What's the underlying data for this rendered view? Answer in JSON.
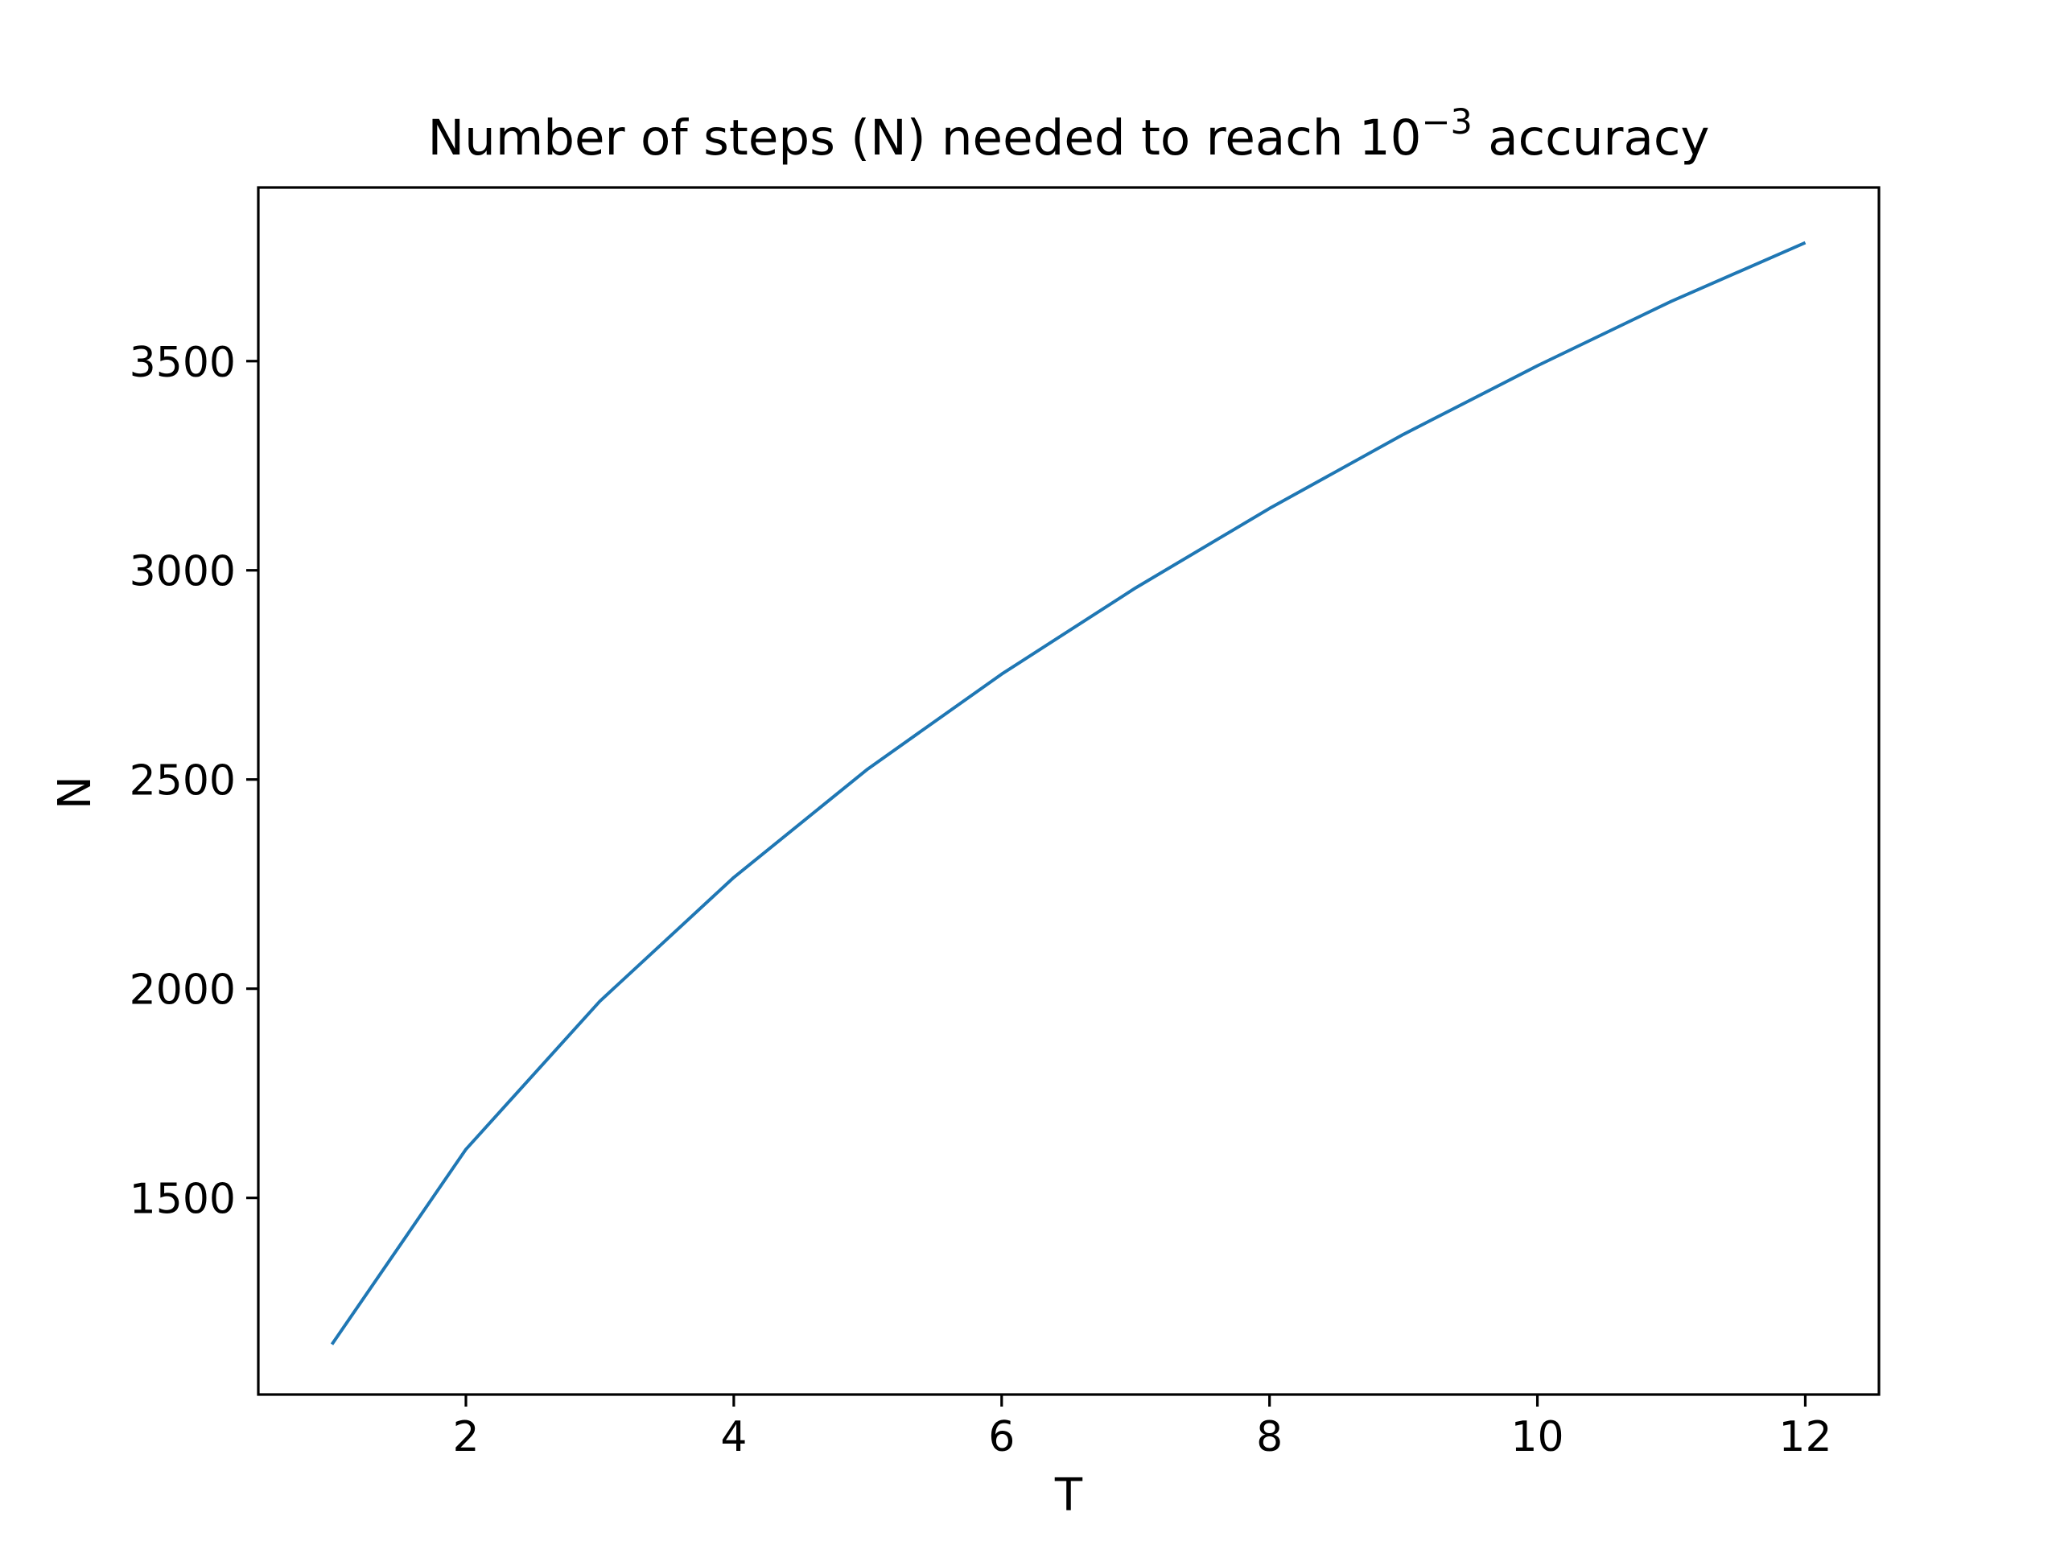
{
  "chart_data": {
    "type": "line",
    "title": {
      "prefix": "Number of steps (N) needed to reach 10",
      "superscript": "−3",
      "suffix": " accuracy"
    },
    "xlabel": "T",
    "ylabel": "N",
    "xlim": [
      0.45,
      12.55
    ],
    "ylim": [
      1030,
      3915
    ],
    "xticks": [
      2,
      4,
      6,
      8,
      10,
      12
    ],
    "xtick_labels": [
      "2",
      "4",
      "6",
      "8",
      "10",
      "12"
    ],
    "yticks": [
      1500,
      2000,
      2500,
      3000,
      3500
    ],
    "ytick_labels": [
      "1500",
      "2000",
      "2500",
      "3000",
      "3500"
    ],
    "grid": false,
    "colors": {
      "line": "#1f77b4",
      "axes": "#000000",
      "background": "#ffffff"
    },
    "series": [
      {
        "x": [
          1,
          2,
          3,
          4,
          5,
          6,
          7,
          8,
          9,
          10,
          11,
          12
        ],
        "values": [
          1150,
          1616,
          1970,
          2266,
          2525,
          2752,
          2958,
          3148,
          3325,
          3489,
          3643,
          3783
        ]
      }
    ]
  }
}
